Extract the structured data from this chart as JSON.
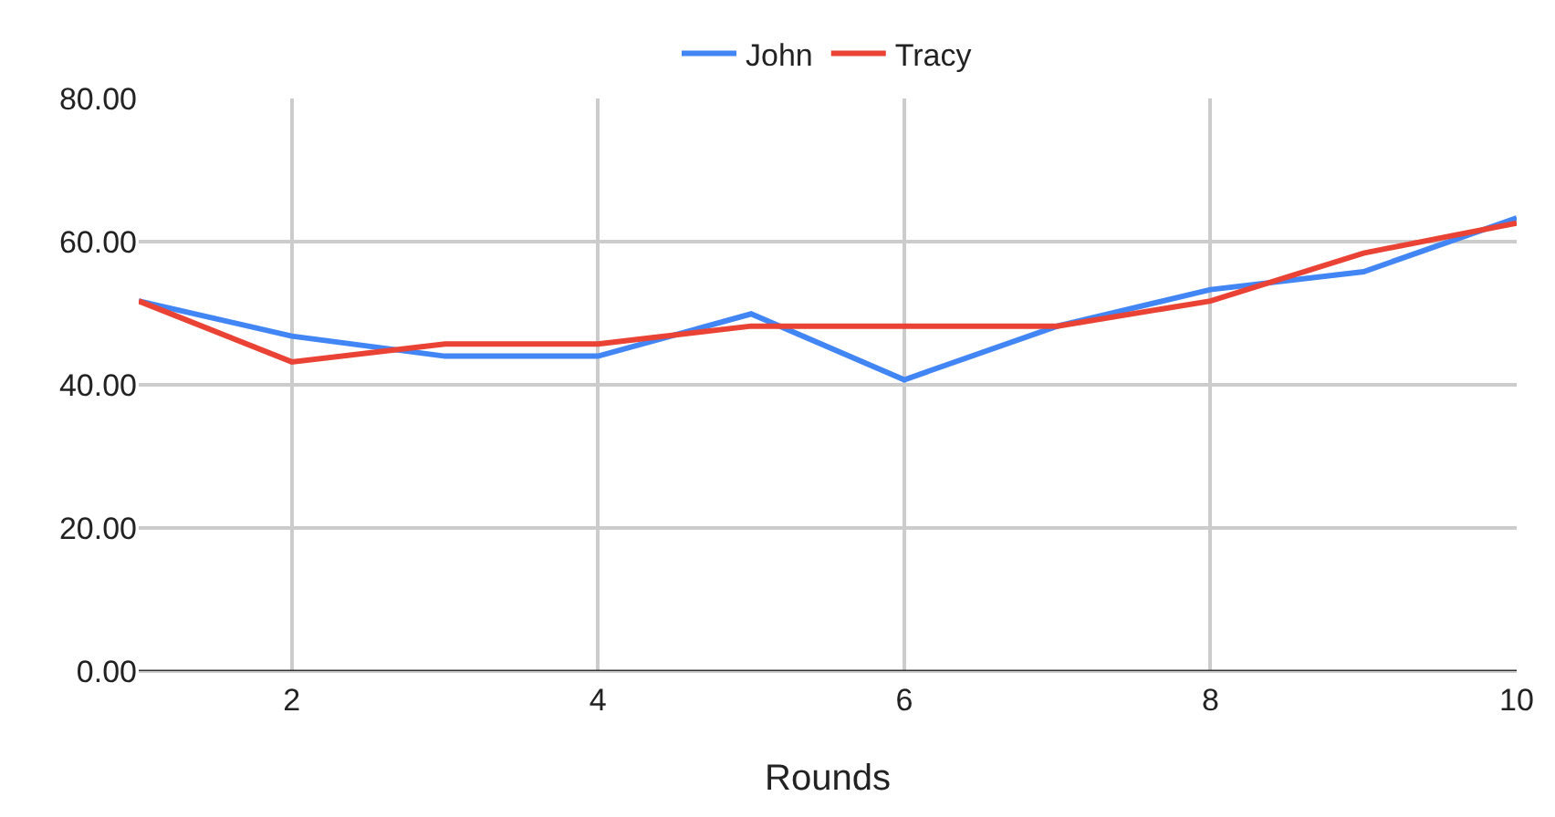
{
  "chart_data": {
    "type": "line",
    "xlabel": "Rounds",
    "x": [
      1,
      2,
      3,
      4,
      5,
      6,
      7,
      8,
      9,
      10
    ],
    "series": [
      {
        "name": "John",
        "color": "#4285f4",
        "values": [
          51.7,
          46.8,
          44,
          44,
          49.9,
          40.7,
          48.2,
          53.3,
          55.8,
          63.3
        ]
      },
      {
        "name": "Tracy",
        "color": "#ea4335",
        "values": [
          51.7,
          43.2,
          45.7,
          45.7,
          48.2,
          48.2,
          48.2,
          51.7,
          58.4,
          62.6
        ]
      }
    ],
    "xlim": [
      1,
      10
    ],
    "xticks": [
      2,
      4,
      6,
      8,
      10
    ],
    "ylim": [
      0,
      80
    ],
    "yticks": [
      {
        "value": 0,
        "label": "0.00"
      },
      {
        "value": 20,
        "label": "20.00"
      },
      {
        "value": 40,
        "label": "40.00"
      },
      {
        "value": 60,
        "label": "60.00"
      },
      {
        "value": 80,
        "label": "80.00"
      }
    ],
    "grid": true,
    "legend": "top",
    "marker": "none",
    "line_style": "solid"
  }
}
